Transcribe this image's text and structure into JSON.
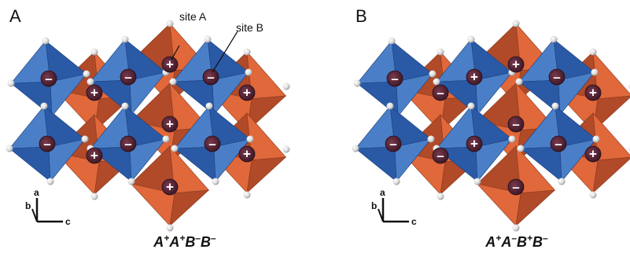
{
  "panels": [
    {
      "letter": "A",
      "site_labels": [
        "site A",
        "site B"
      ],
      "axes": {
        "a": "a",
        "b": "b",
        "c": "c"
      },
      "caption": [
        [
          "A",
          "+"
        ],
        [
          "A",
          "+"
        ],
        [
          "B",
          "–"
        ],
        [
          "B",
          "–"
        ]
      ],
      "blue_signs": [
        "–",
        "–",
        "–",
        "–",
        "–",
        "–"
      ],
      "orange_signs": [
        "+",
        "+",
        "+",
        "+",
        "+",
        "+",
        "+",
        "+"
      ]
    },
    {
      "letter": "B",
      "site_labels": [],
      "axes": {
        "a": "a",
        "b": "b",
        "c": "c"
      },
      "caption": [
        [
          "A",
          "+"
        ],
        [
          "A",
          "–"
        ],
        [
          "B",
          "+"
        ],
        [
          "B",
          "–"
        ]
      ],
      "blue_signs": [
        "–",
        "+",
        "–",
        "–",
        "+",
        "–"
      ],
      "orange_signs": [
        "+",
        "–",
        "+",
        "–",
        "–",
        "+",
        "–",
        "+"
      ]
    }
  ],
  "colors": {
    "blue_face_light": "#4a7fc8",
    "blue_face_dark": "#2a5aa6",
    "orange_face_light": "#e0683a",
    "orange_face_dark": "#b04a28",
    "marker_fill": "#5a2a3a",
    "background": "#ffffff"
  }
}
